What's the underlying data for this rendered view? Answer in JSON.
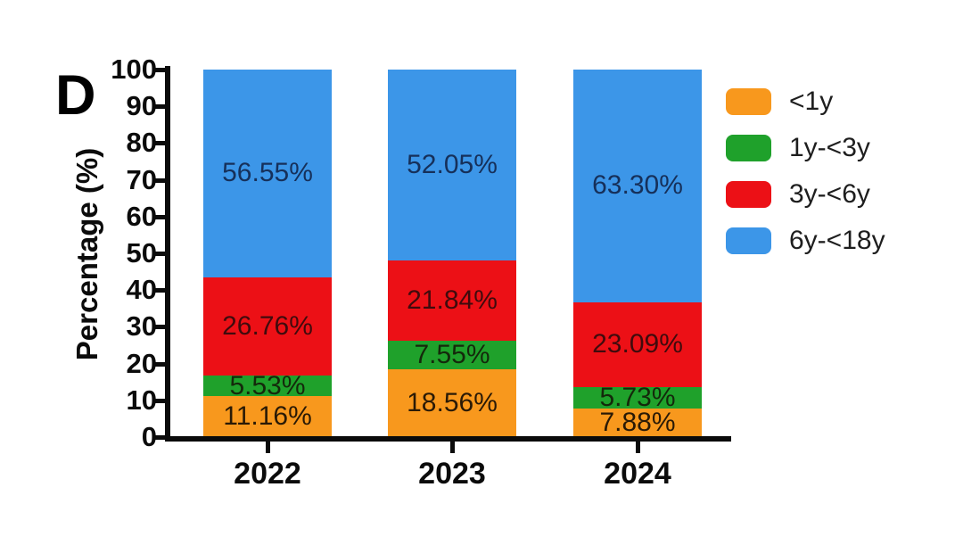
{
  "panel_label": "D",
  "chart_data": {
    "type": "bar",
    "stacked": true,
    "title": "",
    "xlabel": "",
    "ylabel": "Percentage (%)",
    "ylim": [
      0,
      100
    ],
    "ytick_step": 10,
    "grid": false,
    "legend_position": "right",
    "label_suffix": "%",
    "label_decimals": 2,
    "categories": [
      "2022",
      "2023",
      "2024"
    ],
    "series": [
      {
        "name": "<1y",
        "color": "#F8981D",
        "label_color": "#2a1a06",
        "values": [
          11.16,
          18.56,
          7.88
        ]
      },
      {
        "name": "1y-<3y",
        "color": "#1FA12B",
        "label_color": "#14290b",
        "values": [
          5.53,
          7.55,
          5.73
        ]
      },
      {
        "name": "3y-<6y",
        "color": "#EC1016",
        "label_color": "#400b0d",
        "values": [
          26.76,
          21.84,
          23.09
        ]
      },
      {
        "name": "6y-<18y",
        "color": "#3C96E8",
        "label_color": "#16305a",
        "values": [
          56.55,
          52.05,
          63.3
        ]
      }
    ],
    "axis_color": "#0b0b0b"
  }
}
